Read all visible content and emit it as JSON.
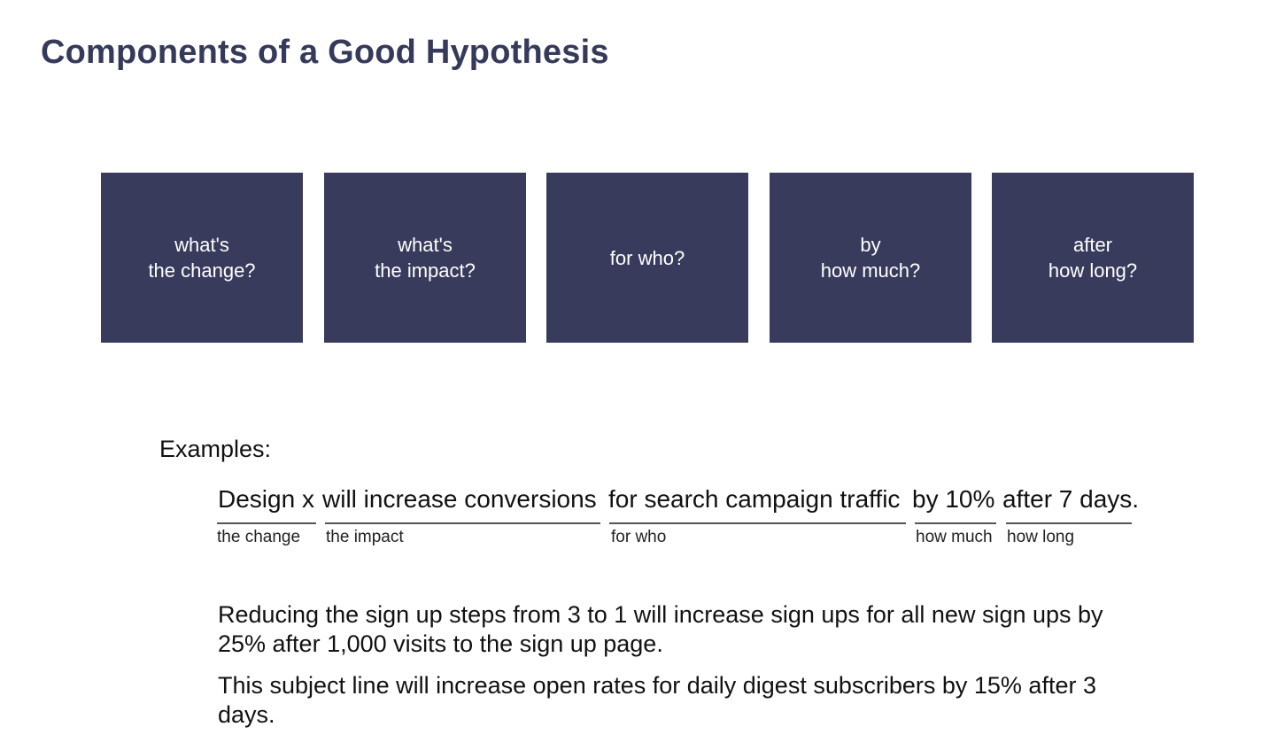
{
  "title": "Components of a Good Hypothesis",
  "components": [
    {
      "line1": "what's",
      "line2": "the change?"
    },
    {
      "line1": "what's",
      "line2": "the impact?"
    },
    {
      "line1": "for who?",
      "line2": ""
    },
    {
      "line1": "by",
      "line2": "how much?"
    },
    {
      "line1": "after",
      "line2": "how long?"
    }
  ],
  "examples_label": "Examples:",
  "example1": {
    "segments": [
      {
        "text": "Design x",
        "label": "the change"
      },
      {
        "text": "will increase conversions",
        "label": "the impact"
      },
      {
        "text": "for search campaign traffic",
        "label": "for who"
      },
      {
        "text": "by 10%",
        "label": "how much"
      },
      {
        "text": "after 7 days.",
        "label": "how long"
      }
    ]
  },
  "example2": "Reducing the sign up steps from 3 to 1 will increase sign ups for all new sign ups by 25% after 1,000 visits to the sign up page.",
  "example3": "This subject line will increase open rates for daily digest subscribers by 15% after 3 days.",
  "colors": {
    "title": "#353a5a",
    "box_fill": "#383b5b",
    "box_text": "#ffffff",
    "rule": "#555555"
  }
}
